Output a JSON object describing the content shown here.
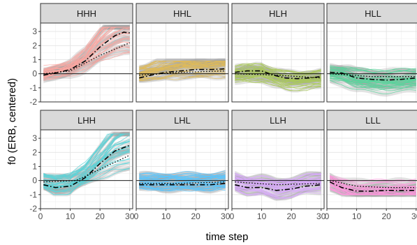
{
  "chart_data": {
    "type": "line",
    "layout": "faceted-grid-2x4",
    "xlabel": "time step",
    "ylabel": "f0 (ERB, centered)",
    "xlim": [
      0,
      31
    ],
    "ylim": [
      -2,
      3.6
    ],
    "xticks": [
      0,
      10,
      20,
      30
    ],
    "yticks": [
      -2,
      -1,
      0,
      1,
      2,
      3
    ],
    "grid": true,
    "reference_line_y": 0,
    "facets": [
      {
        "label": "HHH",
        "color": "#F8766D",
        "band": [
          -0.5,
          0.5,
          -0.6,
          3.3
        ],
        "mean": [
          [
            1,
            -0.1
          ],
          [
            5,
            0.05
          ],
          [
            10,
            0.3
          ],
          [
            15,
            0.9
          ],
          [
            20,
            1.9
          ],
          [
            25,
            2.7
          ],
          [
            28,
            2.95
          ],
          [
            30,
            2.9
          ]
        ],
        "dotted": [
          [
            1,
            0
          ],
          [
            10,
            0.2
          ],
          [
            20,
            1.3
          ],
          [
            30,
            2.2
          ]
        ]
      },
      {
        "label": "HHL",
        "color": "#CD9600",
        "band": [
          -0.5,
          0.5,
          -1.2,
          0.9
        ],
        "mean": [
          [
            1,
            -0.3
          ],
          [
            5,
            -0.1
          ],
          [
            10,
            0.1
          ],
          [
            15,
            0.2
          ],
          [
            20,
            0.3
          ],
          [
            25,
            0.3
          ],
          [
            30,
            0.35
          ]
        ],
        "dotted": [
          [
            1,
            -0.1
          ],
          [
            15,
            0.1
          ],
          [
            30,
            0.2
          ]
        ]
      },
      {
        "label": "HLH",
        "color": "#7CAE00",
        "band": [
          -0.5,
          0.5,
          -1.2,
          0.8
        ],
        "mean": [
          [
            1,
            0.1
          ],
          [
            5,
            0.2
          ],
          [
            10,
            0.2
          ],
          [
            14,
            -0.1
          ],
          [
            18,
            -0.3
          ],
          [
            22,
            -0.35
          ],
          [
            26,
            -0.3
          ],
          [
            30,
            -0.2
          ]
        ],
        "dotted": [
          [
            1,
            0
          ],
          [
            15,
            -0.1
          ],
          [
            30,
            -0.3
          ]
        ]
      },
      {
        "label": "HLL",
        "color": "#00BE67",
        "band": [
          -0.5,
          0.5,
          -1.6,
          0.9
        ],
        "mean": [
          [
            1,
            0.1
          ],
          [
            5,
            0.05
          ],
          [
            10,
            -0.3
          ],
          [
            15,
            -0.4
          ],
          [
            20,
            -0.45
          ],
          [
            25,
            -0.4
          ],
          [
            30,
            -0.3
          ]
        ],
        "dotted": [
          [
            1,
            0
          ],
          [
            15,
            -0.2
          ],
          [
            30,
            -0.2
          ]
        ]
      },
      {
        "label": "LHH",
        "color": "#00BFC4",
        "band": [
          -0.6,
          0.5,
          -1.0,
          3.3
        ],
        "mean": [
          [
            1,
            -0.3
          ],
          [
            5,
            -0.5
          ],
          [
            10,
            -0.4
          ],
          [
            15,
            0.2
          ],
          [
            20,
            1.2
          ],
          [
            25,
            2.1
          ],
          [
            30,
            2.5
          ]
        ],
        "dotted": [
          [
            1,
            -0.1
          ],
          [
            12,
            0
          ],
          [
            20,
            0.8
          ],
          [
            30,
            1.8
          ]
        ]
      },
      {
        "label": "LHL",
        "color": "#00A9FF",
        "band": [
          -0.6,
          0.5,
          -1.5,
          1.2
        ],
        "mean": [
          [
            1,
            -0.3
          ],
          [
            5,
            -0.3
          ],
          [
            10,
            -0.3
          ],
          [
            15,
            -0.3
          ],
          [
            20,
            -0.3
          ],
          [
            25,
            -0.3
          ],
          [
            30,
            -0.2
          ]
        ],
        "dotted": [
          [
            1,
            -0.2
          ],
          [
            15,
            -0.2
          ],
          [
            30,
            -0.1
          ]
        ]
      },
      {
        "label": "LLH",
        "color": "#C77CFF",
        "band": [
          -0.6,
          0.5,
          -1.3,
          0.6
        ],
        "mean": [
          [
            1,
            -0.3
          ],
          [
            5,
            -0.5
          ],
          [
            10,
            -0.5
          ],
          [
            15,
            -0.7
          ],
          [
            20,
            -0.6
          ],
          [
            25,
            -0.4
          ],
          [
            30,
            -0.3
          ]
        ],
        "dotted": [
          [
            1,
            -0.1
          ],
          [
            15,
            -0.3
          ],
          [
            30,
            -0.2
          ]
        ]
      },
      {
        "label": "LLL",
        "color": "#FF61CC",
        "band": [
          -0.6,
          0.5,
          -1.0,
          0.7
        ],
        "mean": [
          [
            1,
            -0.1
          ],
          [
            5,
            -0.5
          ],
          [
            10,
            -0.75
          ],
          [
            15,
            -0.75
          ],
          [
            20,
            -0.7
          ],
          [
            25,
            -0.7
          ],
          [
            30,
            -0.7
          ]
        ],
        "dotted": [
          [
            1,
            0
          ],
          [
            10,
            -0.4
          ],
          [
            20,
            -0.5
          ],
          [
            30,
            -0.5
          ]
        ]
      }
    ]
  }
}
